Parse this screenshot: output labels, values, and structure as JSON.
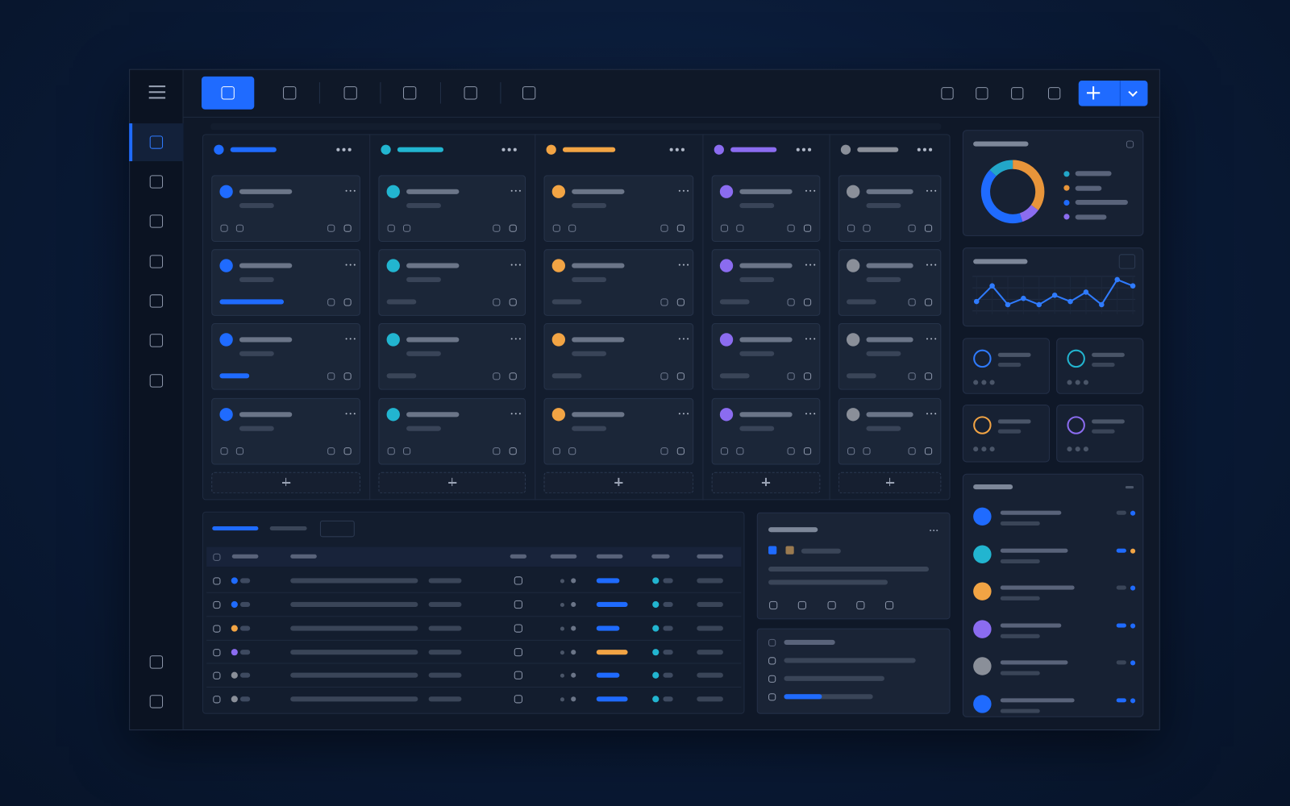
{
  "donut": {
    "type": "pie",
    "values": [
      35,
      10,
      42,
      13
    ],
    "colors": [
      "#e8953a",
      "#8b6cf0",
      "#1f6bff",
      "#22a6c9"
    ]
  },
  "trend": {
    "type": "line",
    "values": [
      3,
      8,
      2,
      4,
      2,
      5,
      3,
      6,
      2,
      10,
      8
    ],
    "ylim": [
      0,
      10
    ],
    "color": "#2f7bff"
  }
}
